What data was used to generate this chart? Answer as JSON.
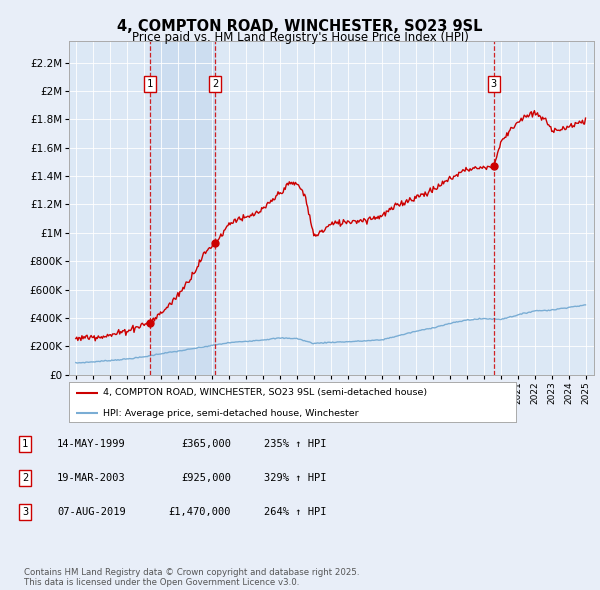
{
  "title_line1": "4, COMPTON ROAD, WINCHESTER, SO23 9SL",
  "title_line2": "Price paid vs. HM Land Registry's House Price Index (HPI)",
  "background_color": "#e8eef8",
  "plot_bg_color": "#dce8f5",
  "ytick_values": [
    0,
    200000,
    400000,
    600000,
    800000,
    1000000,
    1200000,
    1400000,
    1600000,
    1800000,
    2000000,
    2200000
  ],
  "xlim": [
    1994.6,
    2025.5
  ],
  "ylim": [
    0,
    2350000
  ],
  "sale_year_vals": [
    1999.37,
    2003.21,
    2019.6
  ],
  "sale_prices": [
    365000,
    925000,
    1470000
  ],
  "sale_labels": [
    "1",
    "2",
    "3"
  ],
  "legend_label_red": "4, COMPTON ROAD, WINCHESTER, SO23 9SL (semi-detached house)",
  "legend_label_blue": "HPI: Average price, semi-detached house, Winchester",
  "table_rows": [
    [
      "1",
      "14-MAY-1999",
      "£365,000",
      "235% ↑ HPI"
    ],
    [
      "2",
      "19-MAR-2003",
      "£925,000",
      "329% ↑ HPI"
    ],
    [
      "3",
      "07-AUG-2019",
      "£1,470,000",
      "264% ↑ HPI"
    ]
  ],
  "footer_text": "Contains HM Land Registry data © Crown copyright and database right 2025.\nThis data is licensed under the Open Government Licence v3.0.",
  "red_color": "#cc0000",
  "blue_color": "#7aadd4",
  "dashed_color": "#cc0000",
  "span_color": "#ccddf0",
  "hpi_control_x": [
    1995,
    1996,
    1997,
    1998,
    1999,
    2000,
    2001,
    2002,
    2003,
    2004,
    2005,
    2006,
    2007,
    2008,
    2009,
    2010,
    2011,
    2012,
    2013,
    2014,
    2015,
    2016,
    2017,
    2018,
    2019,
    2020,
    2021,
    2022,
    2023,
    2024,
    2025
  ],
  "hpi_control_y": [
    82000,
    90000,
    100000,
    110000,
    125000,
    148000,
    165000,
    185000,
    205000,
    225000,
    235000,
    245000,
    258000,
    255000,
    220000,
    228000,
    232000,
    238000,
    245000,
    275000,
    305000,
    330000,
    360000,
    385000,
    395000,
    390000,
    420000,
    450000,
    455000,
    475000,
    490000
  ],
  "red_control_x": [
    1995,
    1996,
    1997,
    1998,
    1999.0,
    1999.37,
    1999.8,
    2000.5,
    2001,
    2001.5,
    2002,
    2002.5,
    2003.0,
    2003.21,
    2003.7,
    2004,
    2004.5,
    2005,
    2006,
    2006.5,
    2007,
    2007.5,
    2008.0,
    2008.5,
    2009.0,
    2009.5,
    2010,
    2011,
    2012,
    2013,
    2014,
    2015,
    2016,
    2017,
    2018,
    2019.0,
    2019.6,
    2020.0,
    2020.5,
    2021,
    2021.5,
    2022,
    2022.5,
    2023,
    2023.5,
    2024,
    2024.5,
    2025
  ],
  "red_control_y": [
    255000,
    268000,
    275000,
    310000,
    355000,
    365000,
    410000,
    490000,
    560000,
    640000,
    730000,
    840000,
    910000,
    925000,
    1010000,
    1060000,
    1100000,
    1100000,
    1160000,
    1220000,
    1280000,
    1340000,
    1350000,
    1260000,
    980000,
    1010000,
    1060000,
    1080000,
    1090000,
    1120000,
    1200000,
    1250000,
    1300000,
    1380000,
    1450000,
    1460000,
    1470000,
    1630000,
    1720000,
    1780000,
    1820000,
    1840000,
    1810000,
    1730000,
    1730000,
    1740000,
    1780000,
    1780000
  ]
}
